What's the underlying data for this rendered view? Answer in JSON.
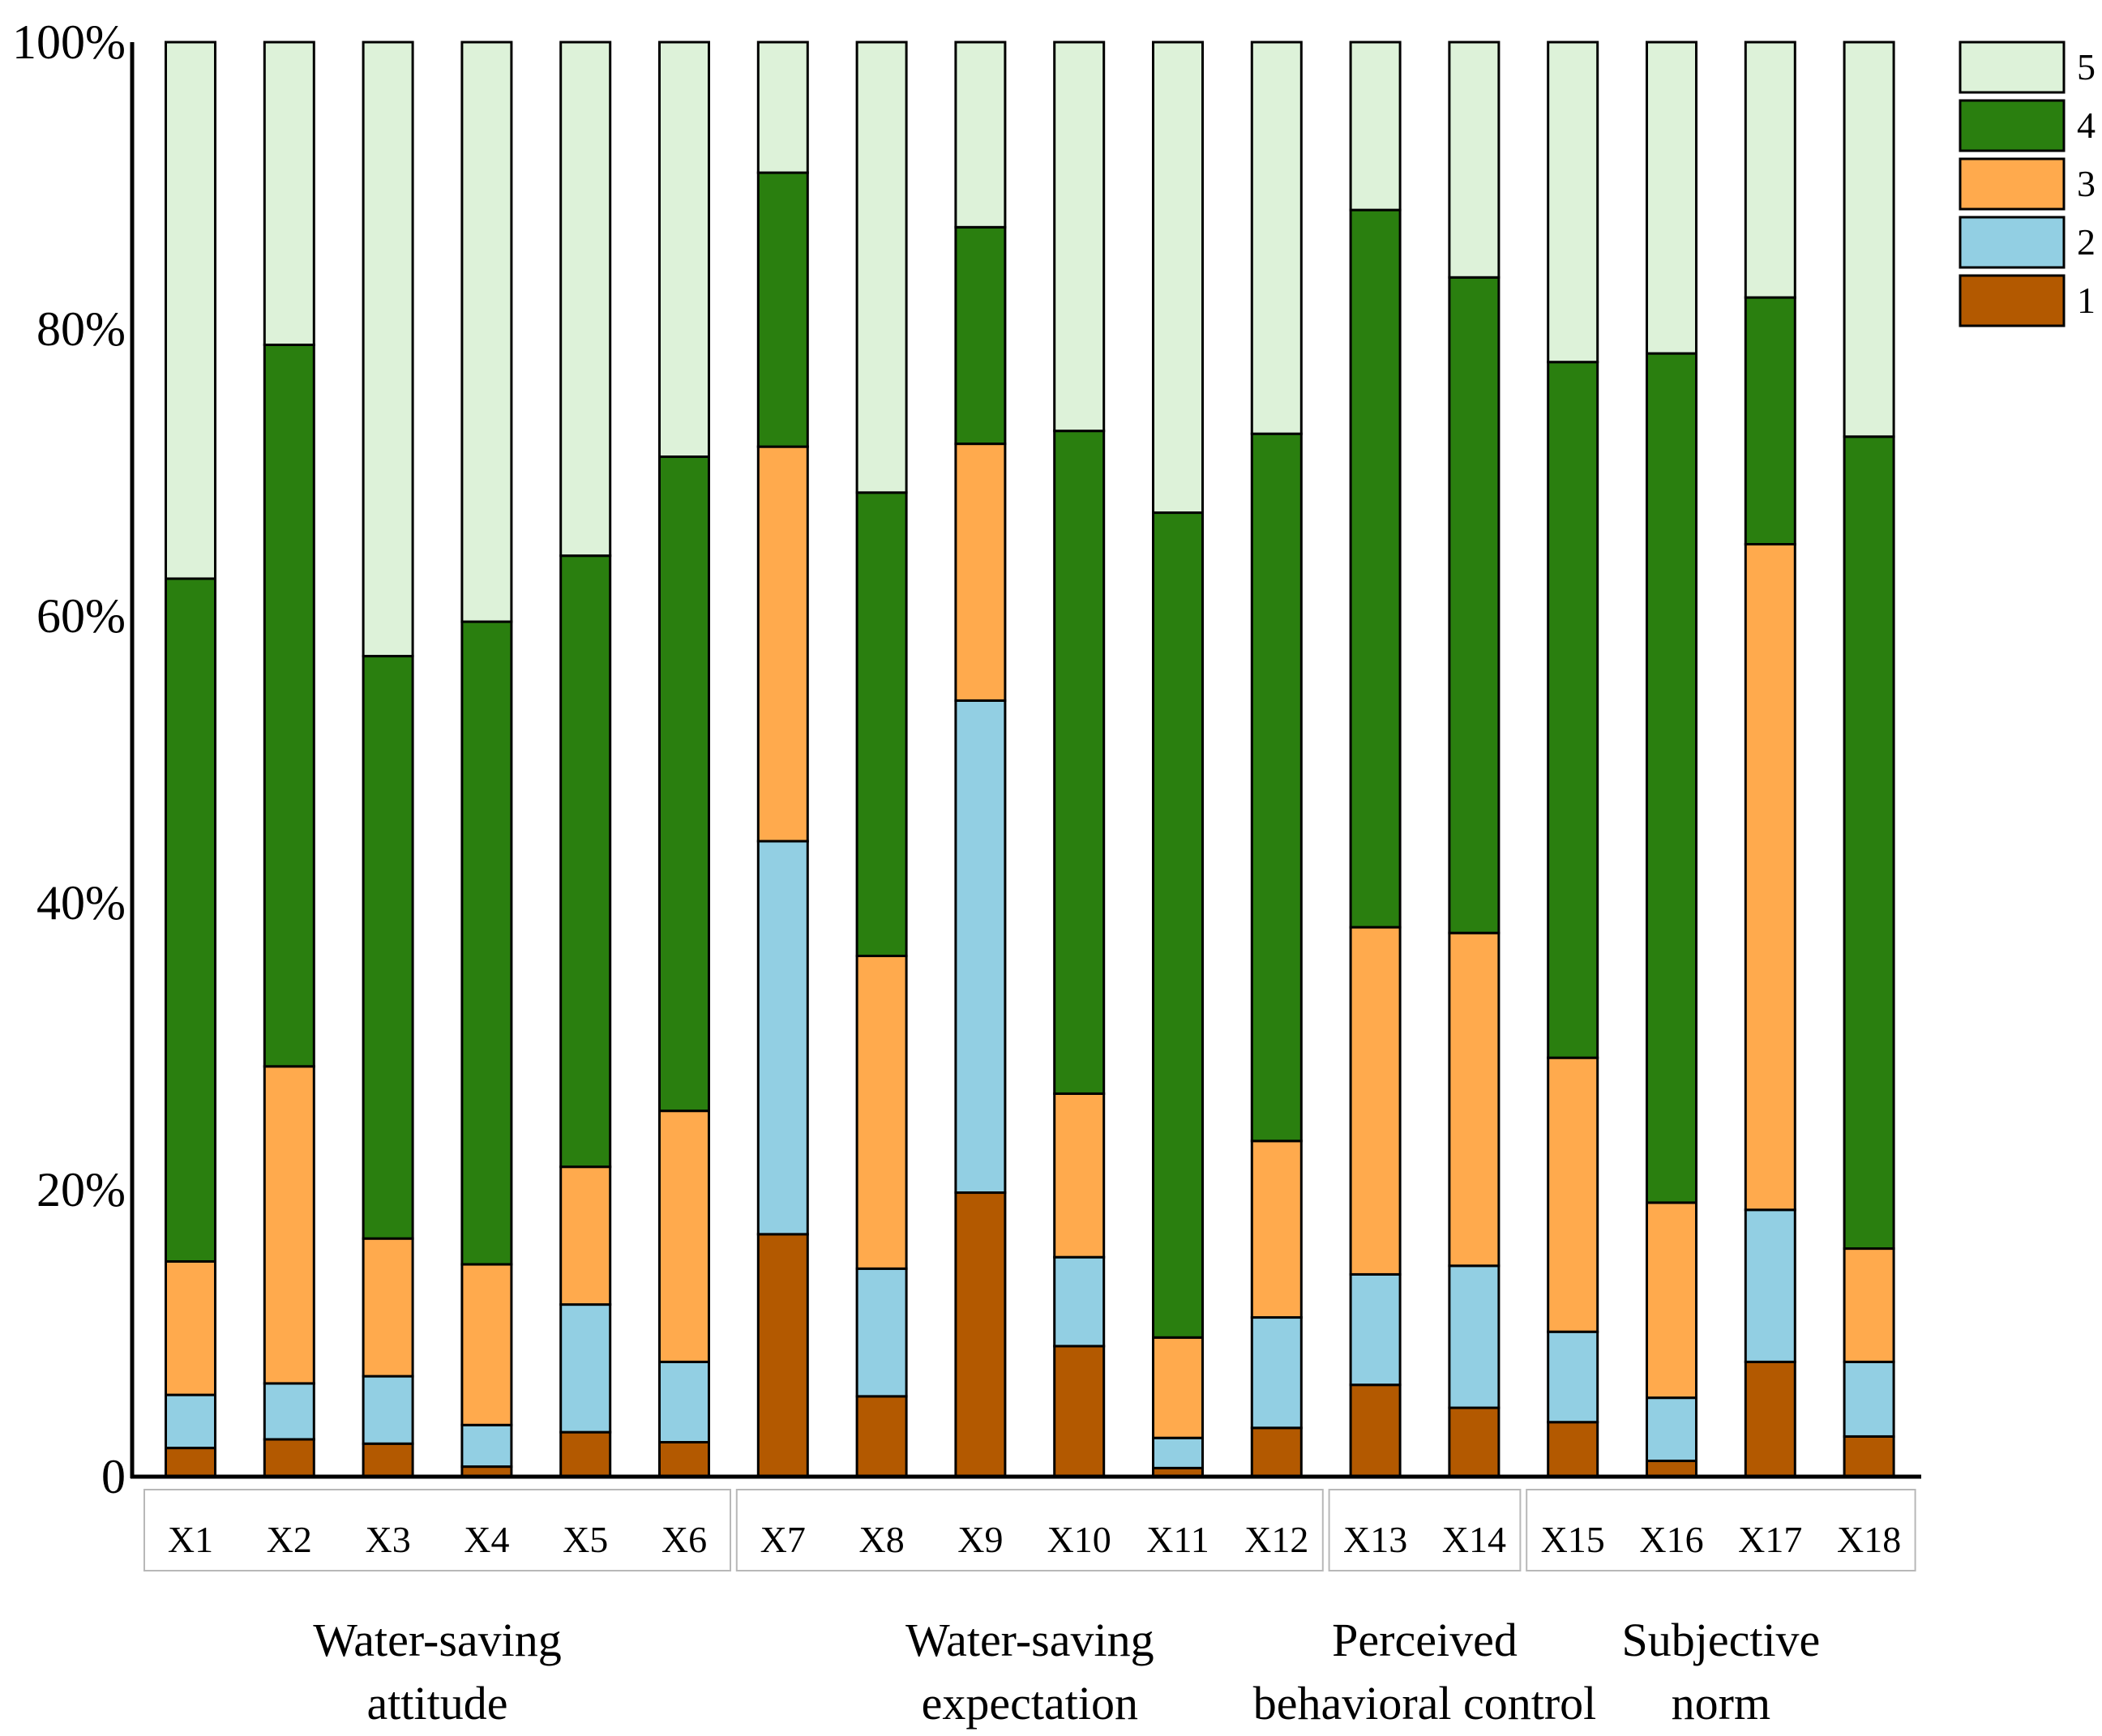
{
  "chart_data": {
    "type": "bar",
    "stacked": true,
    "percent": true,
    "categories": [
      "X1",
      "X2",
      "X3",
      "X4",
      "X5",
      "X6",
      "X7",
      "X8",
      "X9",
      "X10",
      "X11",
      "X12",
      "X13",
      "X14",
      "X15",
      "X16",
      "X17",
      "X18"
    ],
    "series": [
      {
        "name": "1",
        "color": "#B35900",
        "values": [
          2,
          2.6,
          2.3,
          0.7,
          3.1,
          2.4,
          16.9,
          5.6,
          19.8,
          9.1,
          0.6,
          3.4,
          6.4,
          4.8,
          3.8,
          1.1,
          8.0,
          2.8
        ]
      },
      {
        "name": "2",
        "color": "#92CFE3",
        "values": [
          3.7,
          3.9,
          4.7,
          2.9,
          8.9,
          5.6,
          27.4,
          8.9,
          34.3,
          6.2,
          2.1,
          7.7,
          7.7,
          9.9,
          6.3,
          4.4,
          10.6,
          5.2
        ]
      },
      {
        "name": "3",
        "color": "#FFAA4D",
        "values": [
          9.3,
          22.1,
          9.6,
          11.2,
          9.6,
          17.5,
          27.5,
          21.8,
          17.9,
          11.4,
          7.0,
          12.3,
          24.2,
          23.2,
          19.1,
          13.6,
          46.4,
          7.9
        ]
      },
      {
        "name": "4",
        "color": "#2A7F0F",
        "values": [
          47.6,
          50.3,
          40.6,
          44.8,
          42.6,
          45.6,
          19.1,
          32.3,
          15.1,
          46.2,
          57.5,
          49.3,
          50.0,
          45.7,
          48.5,
          59.2,
          17.2,
          56.6
        ]
      },
      {
        "name": "5",
        "color": "#DDF2D9",
        "values": [
          37.4,
          21.1,
          42.8,
          40.4,
          35.8,
          28.9,
          9.1,
          31.4,
          12.9,
          27.1,
          32.8,
          27.3,
          11.7,
          16.4,
          22.3,
          21.7,
          17.8,
          27.5
        ]
      }
    ],
    "yticks": [
      {
        "value": 0,
        "label": "0"
      },
      {
        "value": 20,
        "label": "20%"
      },
      {
        "value": 40,
        "label": "40%"
      },
      {
        "value": 60,
        "label": "60%"
      },
      {
        "value": 80,
        "label": "80%"
      },
      {
        "value": 100,
        "label": "100%"
      }
    ],
    "ylim": [
      0,
      100
    ],
    "legend_position": "top-right",
    "groups": [
      {
        "categories": [
          "X1",
          "X2",
          "X3",
          "X4",
          "X5",
          "X6"
        ],
        "label_lines": [
          "Water-saving",
          "attitude"
        ]
      },
      {
        "categories": [
          "X7",
          "X8",
          "X9",
          "X10",
          "X11",
          "X12"
        ],
        "label_lines": [
          "Water-saving",
          "expectation"
        ]
      },
      {
        "categories": [
          "X13",
          "X14"
        ],
        "label_lines": [
          "Perceived",
          "behavioral control"
        ]
      },
      {
        "categories": [
          "X15",
          "X16",
          "X17",
          "X18"
        ],
        "label_lines": [
          "Subjective",
          "norm"
        ]
      }
    ]
  }
}
